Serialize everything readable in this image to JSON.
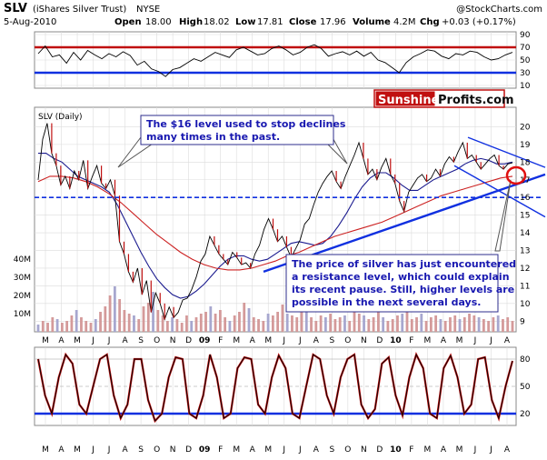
{
  "header": {
    "symbol": "SLV",
    "name": "(iShares Silver Trust)",
    "exchange": "NYSE",
    "copyright": "@StockCharts.com",
    "date": "5-Aug-2010",
    "open_label": "Open",
    "open": "18.00",
    "high_label": "High",
    "high": "18.02",
    "low_label": "Low",
    "low": "17.81",
    "close_label": "Close",
    "close": "17.96",
    "volume_label": "Volume",
    "volume": "4.2M",
    "chg_label": "Chg",
    "chg": "+0.03 (+0.17%)"
  },
  "logo": {
    "part1": "Sunshine",
    "part2": "Profits.com"
  },
  "annotations": {
    "note1": [
      "The $16 level used to stop declines",
      "many times in the past."
    ],
    "note2": [
      "The price of silver has just encountered",
      "a resistance level, which could explain",
      "its recent pause. Still, higher levels are",
      "possible in the next several days."
    ]
  },
  "colors": {
    "price_line": "#000000",
    "short_ma": "#1b1b8f",
    "long_ma": "#cc2222",
    "support_blue": "#1030e0",
    "resistance_red": "#c01010",
    "volume_red": "#d49a9a",
    "volume_blue": "#a7a7cf",
    "circle": "#e01010"
  },
  "chart_data": [
    {
      "type": "line",
      "panel": "RSI (top indicator)",
      "ylim": [
        10,
        90
      ],
      "y_ticks": [
        10,
        30,
        50,
        70,
        90
      ],
      "reference_levels": [
        30,
        70
      ],
      "values": [
        60,
        72,
        55,
        58,
        45,
        62,
        50,
        65,
        58,
        52,
        60,
        55,
        63,
        57,
        42,
        48,
        36,
        32,
        24,
        35,
        38,
        45,
        52,
        48,
        55,
        62,
        58,
        54,
        66,
        70,
        64,
        58,
        60,
        68,
        72,
        66,
        58,
        62,
        70,
        74,
        68,
        56,
        60,
        63,
        58,
        64,
        56,
        62,
        50,
        46,
        38,
        30,
        46,
        55,
        60,
        66,
        64,
        56,
        52,
        60,
        58,
        64,
        62,
        55,
        50,
        52,
        58,
        62
      ]
    },
    {
      "type": "line",
      "panel": "SLV (Daily) price",
      "x_labels": [
        "M",
        "A",
        "M",
        "J",
        "J",
        "A",
        "S",
        "O",
        "N",
        "D",
        "09",
        "F",
        "M",
        "A",
        "M",
        "J",
        "J",
        "A",
        "S",
        "O",
        "N",
        "D",
        "10",
        "F",
        "M",
        "A",
        "M",
        "J",
        "J",
        "A"
      ],
      "y_ticks": [
        9,
        10,
        11,
        12,
        13,
        14,
        15,
        16,
        17,
        18,
        19,
        20
      ],
      "ylim": [
        8.5,
        21
      ],
      "series": [
        {
          "name": "SLV (Daily)",
          "values": [
            17.0,
            19.3,
            20.2,
            18.5,
            17.8,
            16.7,
            17.2,
            16.5,
            17.5,
            17.0,
            18.1,
            16.5,
            17.2,
            17.8,
            16.8,
            16.5,
            17.0,
            16.1,
            13.5,
            12.8,
            11.8,
            11.2,
            12.0,
            10.5,
            11.3,
            9.5,
            10.6,
            10.0,
            9.1,
            9.8,
            9.2,
            9.5,
            10.2,
            10.3,
            10.8,
            11.5,
            12.4,
            12.8,
            13.8,
            13.3,
            12.8,
            12.5,
            12.2,
            12.9,
            12.6,
            12.2,
            12.3,
            12.0,
            12.8,
            13.3,
            14.2,
            14.8,
            14.2,
            13.5,
            13.8,
            13.2,
            12.6,
            13.1,
            13.6,
            14.5,
            14.8,
            15.6,
            16.3,
            16.8,
            17.2,
            17.5,
            16.9,
            16.5,
            17.2,
            17.8,
            18.4,
            19.1,
            18.2,
            17.3,
            17.6,
            17.0,
            17.7,
            18.2,
            17.3,
            16.8,
            15.8,
            15.2,
            16.3,
            16.7,
            17.1,
            17.3,
            16.9,
            17.1,
            17.6,
            17.2,
            17.9,
            18.3,
            18.0,
            18.6,
            19.1,
            18.2,
            18.4,
            18.0,
            17.6,
            17.9,
            18.2,
            18.4,
            17.8,
            17.6,
            17.9,
            17.96
          ]
        },
        {
          "name": "Short MA",
          "values": [
            18.5,
            18.5,
            18.2,
            18.0,
            17.6,
            17.2,
            17.0,
            16.8,
            16.6,
            16.3,
            15.6,
            14.7,
            13.8,
            12.9,
            12.1,
            11.4,
            10.9,
            10.5,
            10.3,
            10.4,
            10.7,
            11.1,
            11.6,
            12.1,
            12.5,
            12.7,
            12.7,
            12.5,
            12.4,
            12.5,
            12.8,
            13.1,
            13.4,
            13.5,
            13.4,
            13.3,
            13.4,
            13.8,
            14.4,
            15.1,
            15.9,
            16.6,
            17.1,
            17.4,
            17.4,
            17.1,
            16.7,
            16.4,
            16.4,
            16.7,
            17.0,
            17.2,
            17.4,
            17.6,
            17.9,
            18.1,
            18.2,
            18.1,
            17.9,
            17.9,
            18.0
          ]
        },
        {
          "name": "Long MA",
          "values": [
            16.9,
            17.2,
            17.2,
            17.1,
            16.9,
            16.6,
            16.2,
            15.7,
            15.1,
            14.5,
            13.9,
            13.4,
            12.9,
            12.5,
            12.2,
            12.0,
            11.9,
            11.9,
            12.0,
            12.2,
            12.4,
            12.7,
            12.9,
            13.2,
            13.5,
            13.8,
            14.0,
            14.2,
            14.4,
            14.6,
            14.9,
            15.2,
            15.5,
            15.8,
            16.1,
            16.3,
            16.5,
            16.7,
            16.9,
            17.1,
            17.2
          ]
        }
      ],
      "reference_lines": {
        "support_dashed": 16.0,
        "resistance_top": 17.2
      }
    },
    {
      "type": "bar",
      "panel": "Volume",
      "y_ticks_label": [
        "10M",
        "20M",
        "30M",
        "40M"
      ],
      "values_m": [
        4,
        6,
        5,
        8,
        7,
        5,
        6,
        9,
        12,
        8,
        6,
        5,
        7,
        11,
        14,
        20,
        25,
        18,
        12,
        10,
        9,
        7,
        14,
        16,
        22,
        12,
        9,
        6,
        8,
        7,
        5,
        9,
        6,
        8,
        10,
        11,
        14,
        10,
        12,
        8,
        6,
        9,
        11,
        16,
        13,
        8,
        7,
        6,
        10,
        9,
        11,
        15,
        10,
        9,
        8,
        12,
        11,
        8,
        6,
        9,
        8,
        10,
        7,
        8,
        9,
        6,
        12,
        10,
        9,
        7,
        8,
        11,
        8,
        6,
        7,
        9,
        10,
        12,
        7,
        8,
        10,
        6,
        8,
        9,
        7,
        6,
        8,
        9,
        7,
        8,
        10,
        9,
        8,
        7,
        6,
        8,
        9,
        7,
        8,
        6
      ]
    },
    {
      "type": "line",
      "panel": "Stochastic (bottom indicator)",
      "ylim": [
        10,
        90
      ],
      "y_ticks": [
        20,
        50,
        80
      ],
      "reference_levels": [
        20,
        80
      ],
      "values": [
        80,
        40,
        20,
        60,
        85,
        75,
        30,
        20,
        50,
        80,
        85,
        40,
        15,
        30,
        80,
        80,
        35,
        12,
        20,
        60,
        82,
        80,
        20,
        15,
        40,
        85,
        60,
        15,
        20,
        70,
        82,
        80,
        30,
        20,
        60,
        84,
        70,
        20,
        15,
        50,
        85,
        80,
        40,
        20,
        60,
        80,
        85,
        30,
        15,
        25,
        75,
        82,
        40,
        18,
        60,
        85,
        70,
        20,
        15,
        70,
        84,
        60,
        20,
        30,
        80,
        82,
        35,
        15,
        50,
        78
      ]
    }
  ]
}
